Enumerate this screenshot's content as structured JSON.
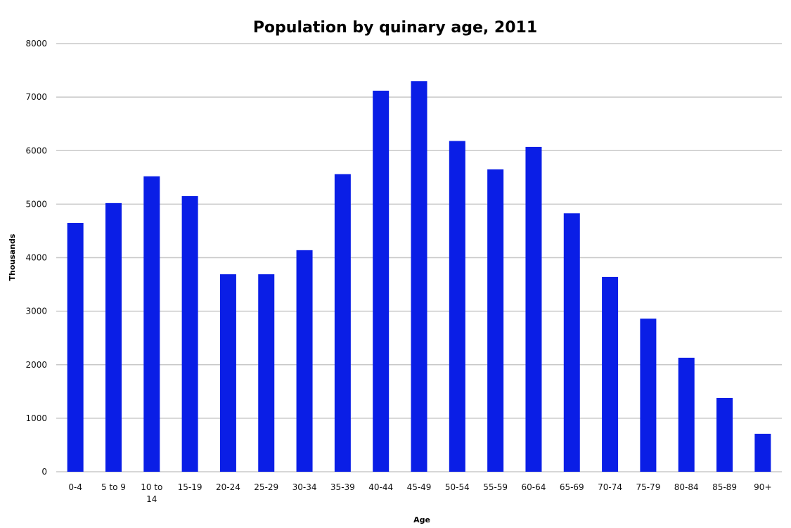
{
  "chart_data": {
    "type": "bar",
    "title": "Population by quinary age, 2011",
    "xlabel": "Age",
    "ylabel": "Thousands",
    "ylim": [
      0,
      8000
    ],
    "yticks": [
      0,
      1000,
      2000,
      3000,
      4000,
      5000,
      6000,
      7000,
      8000
    ],
    "grid": true,
    "categories": [
      "0-4",
      "5 to 9",
      "10 to 14",
      "15-19",
      "20-24",
      "25-29",
      "30-34",
      "35-39",
      "40-44",
      "45-49",
      "50-54",
      "55-59",
      "60-64",
      "65-69",
      "70-74",
      "75-79",
      "80-84",
      "85-89",
      "90+"
    ],
    "values": [
      4650,
      5020,
      5520,
      5150,
      3690,
      3690,
      4140,
      5560,
      7120,
      7300,
      6180,
      5650,
      6070,
      4830,
      3640,
      2860,
      2130,
      1380,
      710
    ],
    "bar_color": "#0a1ee6",
    "grid_color": "#c8c8c8"
  }
}
